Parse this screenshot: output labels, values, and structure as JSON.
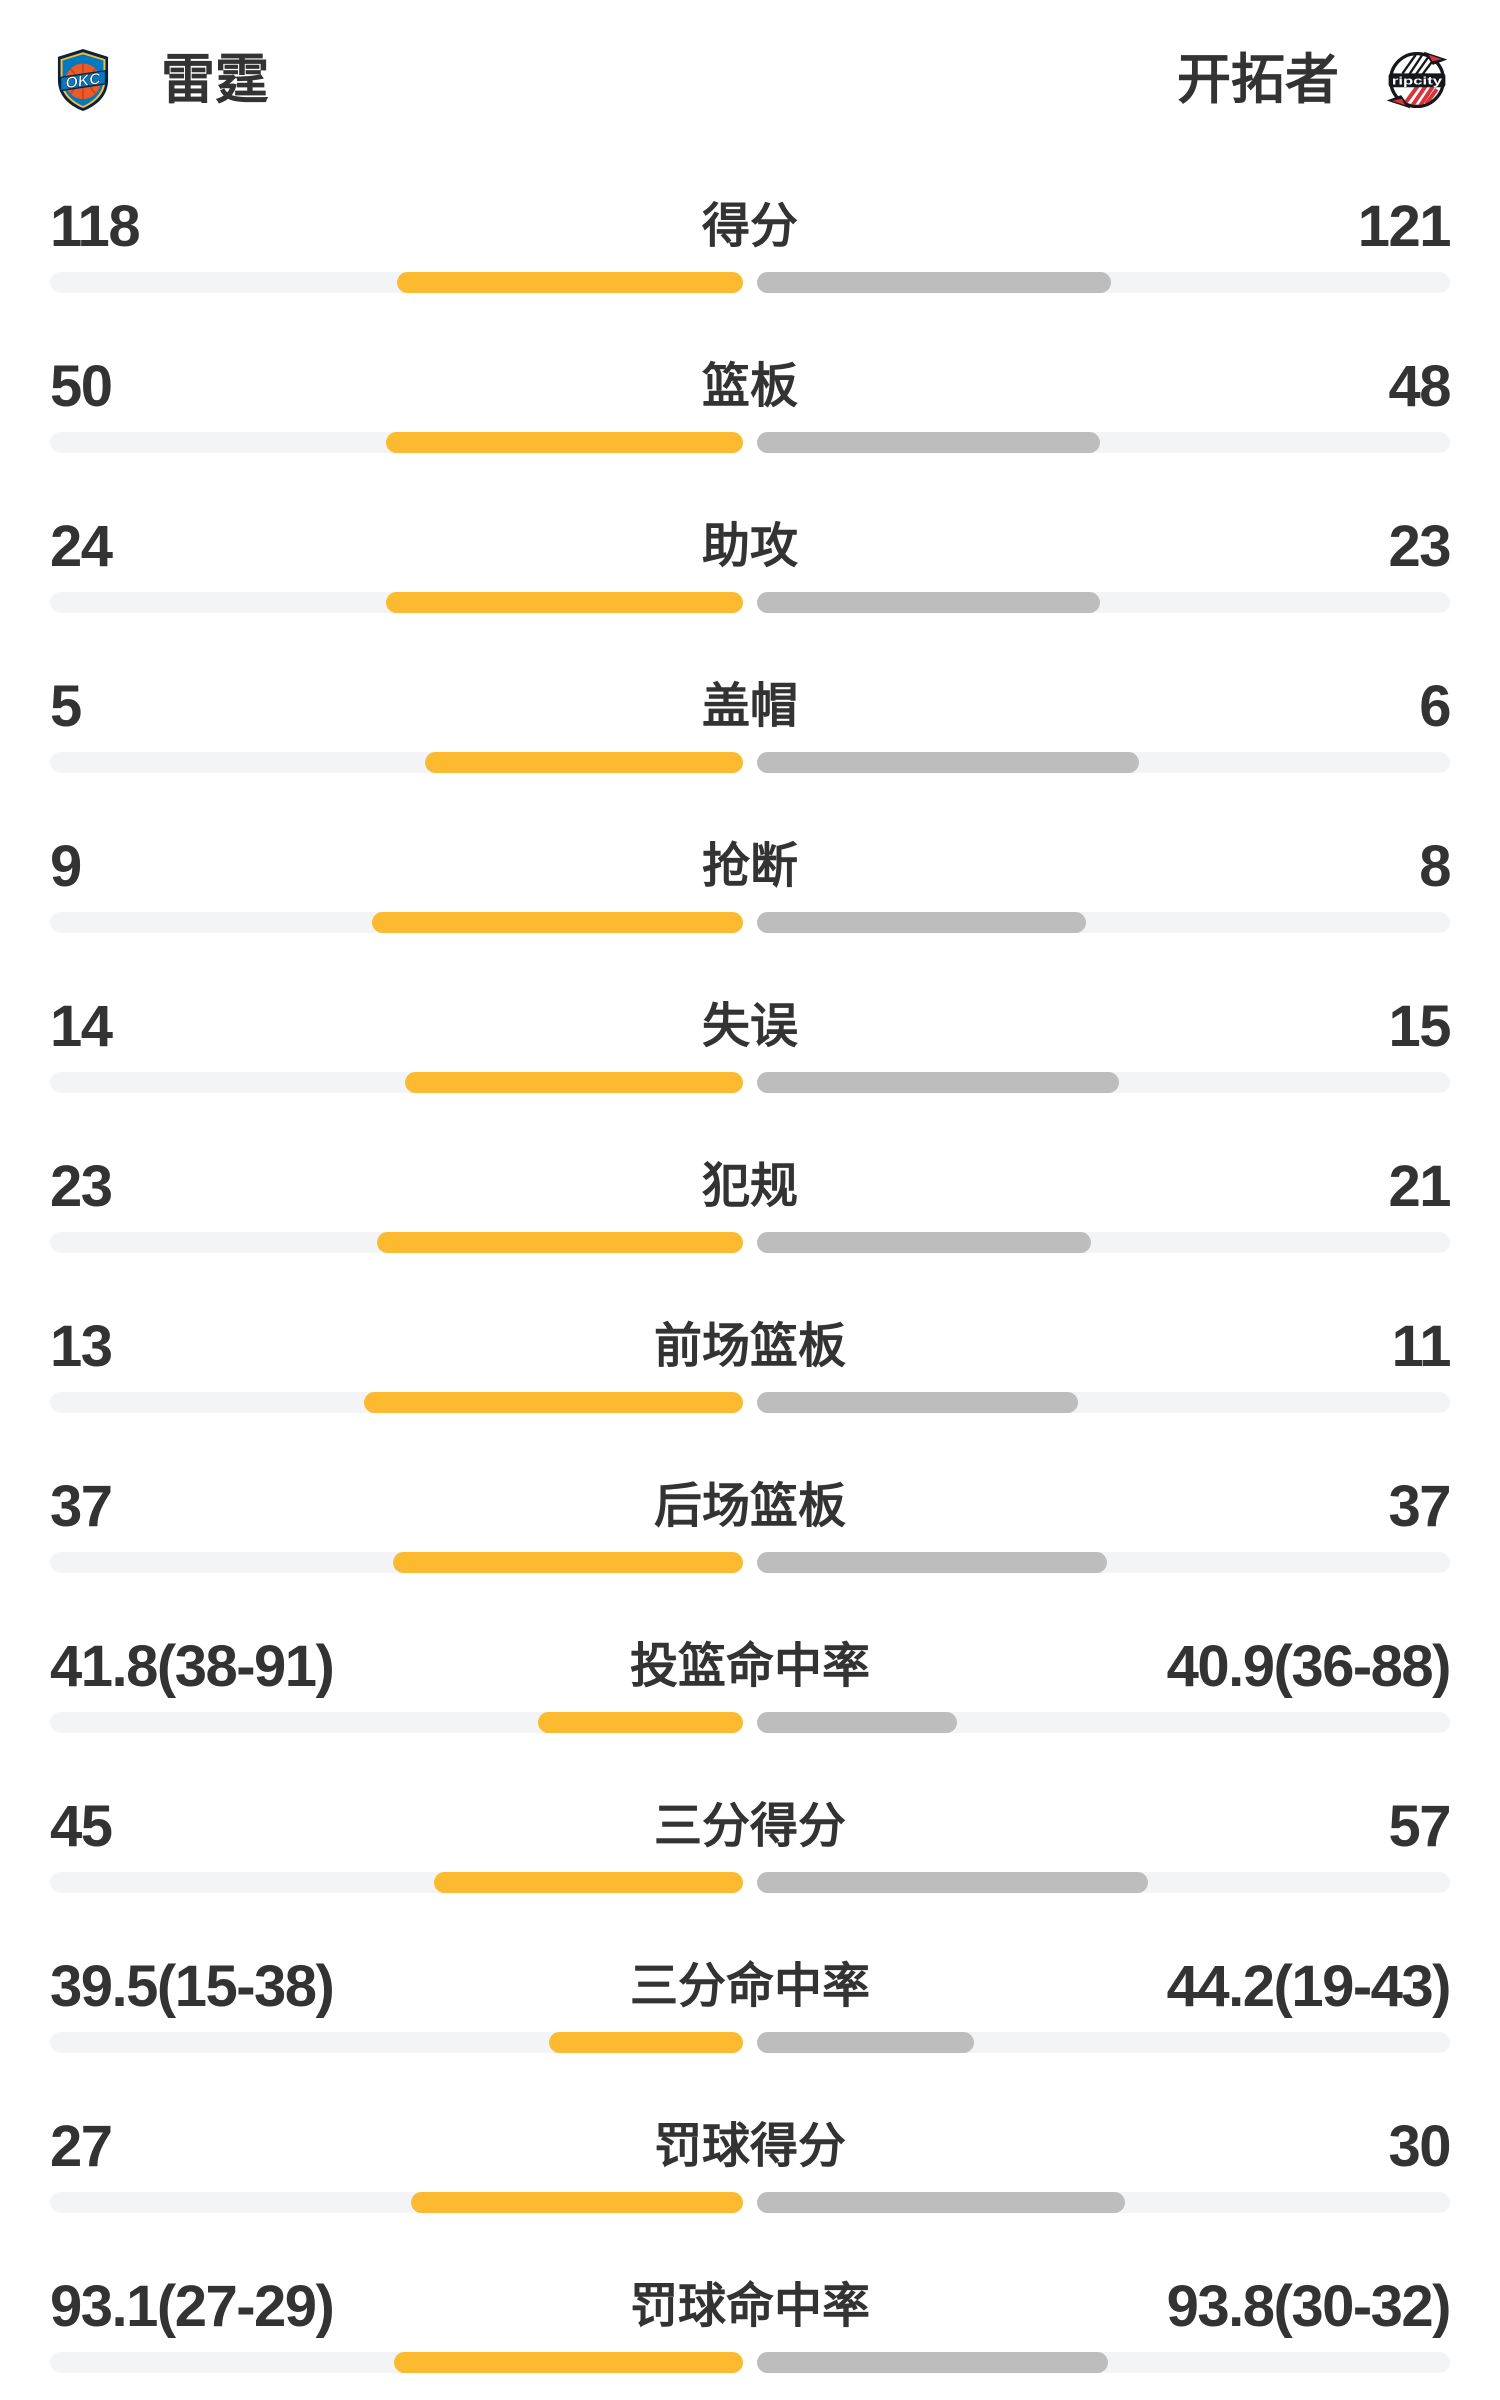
{
  "header": {
    "left_team": {
      "name": "雷霆",
      "logo_text": "OKC"
    },
    "right_team": {
      "name": "开拓者",
      "logo_text": "ripcity"
    }
  },
  "colors": {
    "left_bar": "#FBBA2F",
    "right_bar": "#BDBDBD",
    "track": "#F3F4F6",
    "text": "#333333",
    "okc_navy": "#0A2240",
    "okc_blue": "#007AC1",
    "okc_orange": "#EC5A28",
    "okc_yellow": "#FDBB30",
    "blazers_black": "#15171C",
    "blazers_red": "#D8343C"
  },
  "chart_data": {
    "type": "bar",
    "orientation": "horizontal-tornado",
    "legend_position": "header",
    "grid": false,
    "categories": [
      "得分",
      "篮板",
      "助攻",
      "盖帽",
      "抢断",
      "失误",
      "犯规",
      "前场篮板",
      "后场篮板",
      "投篮命中率",
      "三分得分",
      "三分命中率",
      "罚球得分",
      "罚球命中率"
    ],
    "percent_row_indices": [
      9,
      11,
      13
    ],
    "series": [
      {
        "name": "雷霆",
        "values": [
          118,
          50,
          24,
          5,
          9,
          14,
          23,
          13,
          37,
          41.8,
          45,
          39.5,
          27,
          93.1
        ],
        "labels": [
          "118",
          "50",
          "24",
          "5",
          "9",
          "14",
          "23",
          "13",
          "37",
          "41.8(38-91)",
          "45",
          "39.5(15-38)",
          "27",
          "93.1(27-29)"
        ]
      },
      {
        "name": "开拓者",
        "values": [
          121,
          48,
          23,
          6,
          8,
          15,
          21,
          11,
          37,
          40.9,
          57,
          44.2,
          30,
          93.8
        ],
        "labels": [
          "121",
          "48",
          "23",
          "6",
          "8",
          "15",
          "21",
          "11",
          "37",
          "40.9(36-88)",
          "57",
          "44.2(19-43)",
          "30",
          "93.8(30-32)"
        ]
      }
    ]
  }
}
